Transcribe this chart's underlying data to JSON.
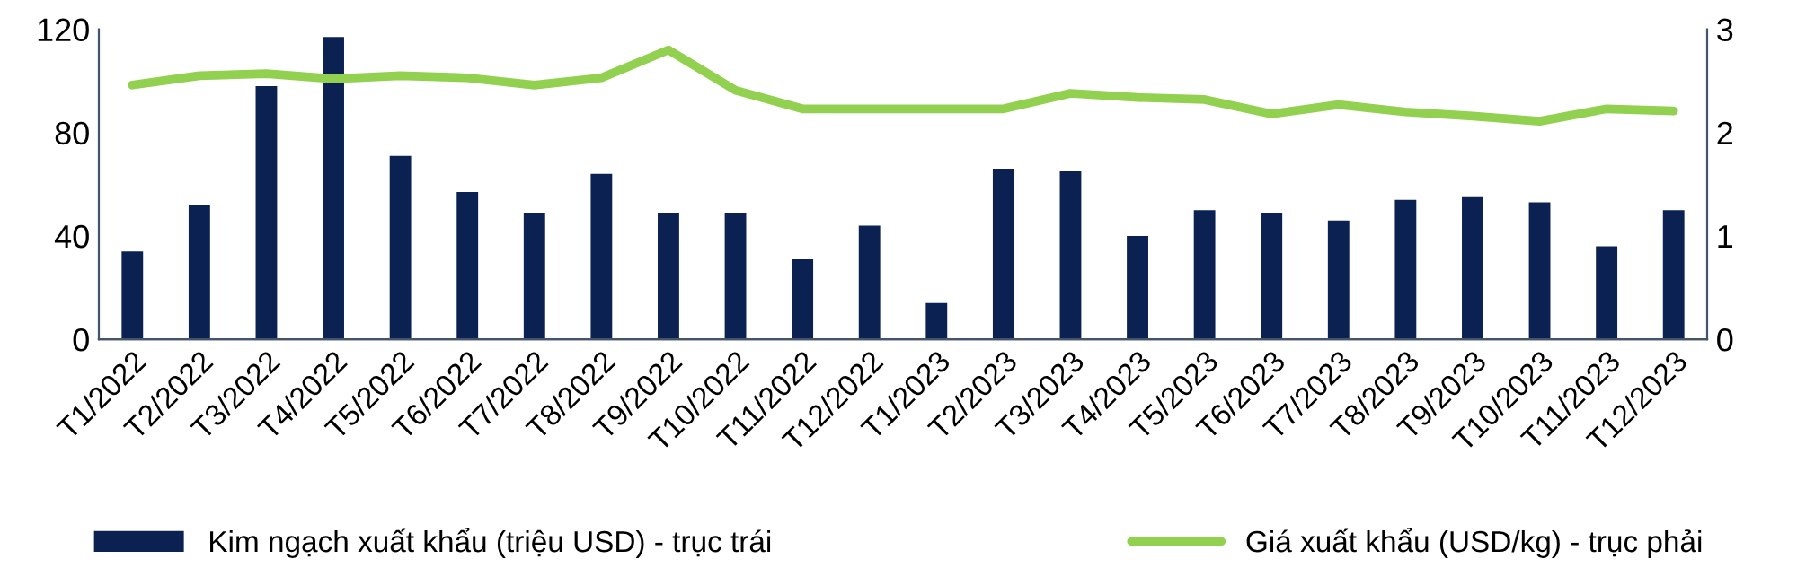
{
  "chart_data": {
    "type": "bar",
    "categories": [
      "T1/2022",
      "T2/2022",
      "T3/2022",
      "T4/2022",
      "T5/2022",
      "T6/2022",
      "T7/2022",
      "T8/2022",
      "T9/2022",
      "T10/2022",
      "T11/2022",
      "T12/2022",
      "T1/2023",
      "T2/2023",
      "T3/2023",
      "T4/2023",
      "T5/2023",
      "T6/2023",
      "T7/2023",
      "T8/2023",
      "T9/2023",
      "T10/2023",
      "T11/2023",
      "T12/2023"
    ],
    "series": [
      {
        "name": "Kim ngạch xuất khẩu (triệu USD) - trục trái",
        "color": "#0a2152",
        "values": [
          34,
          52,
          98,
          117,
          71,
          57,
          49,
          64,
          49,
          49,
          31,
          44,
          14,
          66,
          65,
          40,
          50,
          49,
          46,
          54,
          55,
          53,
          36,
          50
        ]
      },
      {
        "name": "Giá xuất khẩu (USD/kg) - trục phải",
        "type": "line",
        "axis": "y2",
        "color": "#92d050",
        "values": [
          2.46,
          2.55,
          2.57,
          2.52,
          2.55,
          2.53,
          2.46,
          2.53,
          2.8,
          2.41,
          2.23,
          2.23,
          2.23,
          2.23,
          2.38,
          2.34,
          2.32,
          2.18,
          2.27,
          2.2,
          2.16,
          2.11,
          2.23,
          2.21
        ]
      }
    ],
    "ylim": [
      0,
      120
    ],
    "yticks": [
      0,
      40,
      80,
      120
    ],
    "y2lim": [
      0,
      3
    ],
    "y2ticks": [
      0,
      1,
      2,
      3
    ],
    "grid": false,
    "legend": "bottom",
    "marker": "none",
    "line_style": "solid"
  }
}
